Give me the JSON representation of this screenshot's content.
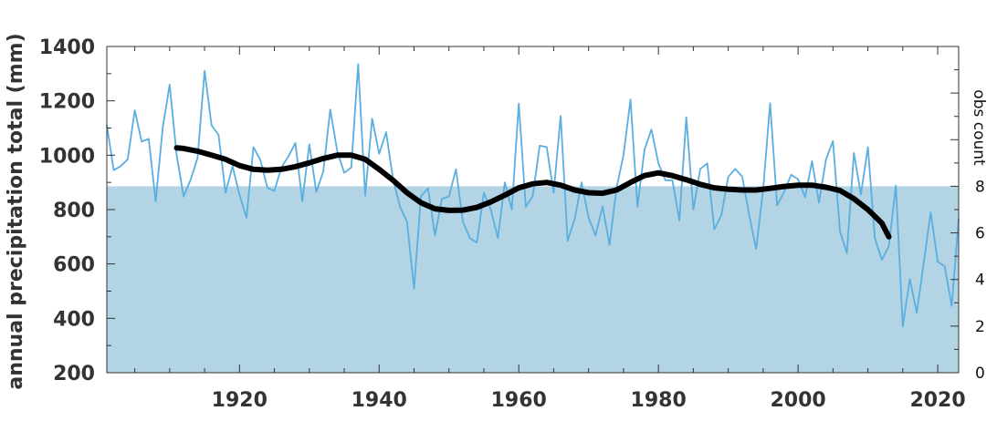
{
  "chart_data": {
    "type": "line",
    "title": "",
    "xlabel": "",
    "ylabel": "annual precipitation total (mm)",
    "y2label": "obs count",
    "xlim": [
      1901,
      2023
    ],
    "ylim": [
      200,
      1400
    ],
    "y2lim": [
      0,
      14
    ],
    "xticks": [
      1920,
      1940,
      1960,
      1980,
      2000,
      2020
    ],
    "yticks": [
      200,
      400,
      600,
      800,
      1000,
      1200,
      1400
    ],
    "y2ticks": [
      0,
      2,
      4,
      6,
      8
    ],
    "grid": false,
    "series": [
      {
        "kind": "annual",
        "color": "#5aaee0",
        "x": [
          1901,
          1902,
          1903,
          1904,
          1905,
          1906,
          1907,
          1908,
          1909,
          1910,
          1911,
          1912,
          1913,
          1914,
          1915,
          1916,
          1917,
          1918,
          1919,
          1920,
          1921,
          1922,
          1923,
          1924,
          1925,
          1926,
          1927,
          1928,
          1929,
          1930,
          1931,
          1932,
          1933,
          1934,
          1935,
          1936,
          1937,
          1938,
          1939,
          1940,
          1941,
          1942,
          1943,
          1944,
          1945,
          1946,
          1947,
          1948,
          1949,
          1950,
          1951,
          1952,
          1953,
          1954,
          1955,
          1956,
          1957,
          1958,
          1959,
          1960,
          1961,
          1962,
          1963,
          1964,
          1965,
          1966,
          1967,
          1968,
          1969,
          1970,
          1971,
          1972,
          1973,
          1974,
          1975,
          1976,
          1977,
          1978,
          1979,
          1980,
          1981,
          1982,
          1983,
          1984,
          1985,
          1986,
          1987,
          1988,
          1989,
          1990,
          1991,
          1992,
          1993,
          1994,
          1995,
          1996,
          1997,
          1998,
          1999,
          2000,
          2001,
          2002,
          2003,
          2004,
          2005,
          2006,
          2007,
          2008,
          2009,
          2010,
          2011,
          2012,
          2013,
          2014,
          2015,
          2016,
          2017,
          2018,
          2019,
          2020,
          2021,
          2022,
          2023
        ],
        "values": [
          1110,
          945,
          960,
          985,
          1165,
          1050,
          1060,
          830,
          1100,
          1260,
          1000,
          848,
          910,
          990,
          1310,
          1110,
          1075,
          862,
          960,
          855,
          770,
          1030,
          982,
          880,
          868,
          955,
          995,
          1045,
          830,
          1040,
          865,
          940,
          1168,
          1015,
          935,
          955,
          1335,
          852,
          1135,
          1005,
          1085,
          912,
          810,
          755,
          510,
          850,
          878,
          705,
          840,
          848,
          948,
          755,
          695,
          678,
          862,
          800,
          695,
          900,
          800,
          1190,
          810,
          850,
          1035,
          1030,
          862,
          1145,
          685,
          765,
          900,
          770,
          705,
          812,
          670,
          880,
          1000,
          1205,
          810,
          1020,
          1095,
          970,
          908,
          908,
          760,
          1140,
          800,
          950,
          970,
          728,
          778,
          920,
          950,
          922,
          780,
          655,
          875,
          1192,
          815,
          865,
          928,
          912,
          845,
          978,
          825,
          985,
          1052,
          720,
          640,
          1008,
          855,
          1030,
          695,
          615,
          665,
          888,
          370,
          545,
          420,
          605,
          790,
          608,
          592,
          445,
          765
        ]
      },
      {
        "kind": "smoothed",
        "color": "#000000",
        "x": [
          1911,
          1912,
          1914,
          1916,
          1918,
          1920,
          1922,
          1924,
          1926,
          1928,
          1930,
          1932,
          1934,
          1936,
          1938,
          1940,
          1942,
          1944,
          1946,
          1948,
          1950,
          1952,
          1954,
          1956,
          1958,
          1960,
          1962,
          1964,
          1966,
          1968,
          1970,
          1972,
          1974,
          1976,
          1978,
          1980,
          1982,
          1984,
          1986,
          1988,
          1990,
          1992,
          1994,
          1996,
          1998,
          2000,
          2002,
          2004,
          2006,
          2008,
          2010,
          2012,
          2013
        ],
        "values": [
          1027,
          1025,
          1015,
          1000,
          985,
          962,
          948,
          945,
          948,
          958,
          972,
          988,
          1000,
          1000,
          985,
          948,
          908,
          862,
          825,
          803,
          797,
          798,
          808,
          828,
          853,
          880,
          895,
          900,
          890,
          872,
          862,
          860,
          872,
          900,
          925,
          935,
          925,
          910,
          893,
          880,
          875,
          872,
          872,
          878,
          885,
          890,
          890,
          882,
          870,
          840,
          800,
          750,
          700
        ]
      },
      {
        "kind": "obs-count-area",
        "color": "#b3d4e4",
        "x": [
          1901,
          2023
        ],
        "values": [
          8,
          8
        ]
      }
    ]
  }
}
